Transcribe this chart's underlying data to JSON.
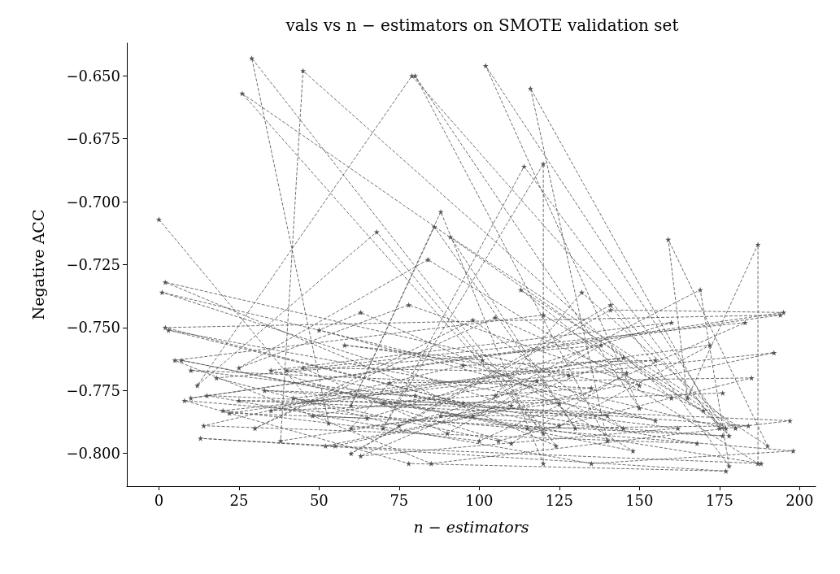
{
  "chart_data": {
    "type": "line",
    "title": "vals vs n − estimators on SMOTE validation set",
    "xlabel": "n − estimators",
    "ylabel": "Negative ACC",
    "xlim": [
      -10,
      205
    ],
    "xticks": [
      0,
      25,
      50,
      75,
      100,
      125,
      150,
      175,
      200
    ],
    "ylim": [
      -0.813,
      -0.637
    ],
    "yticks": [
      {
        "value": -0.8,
        "label": "−0.800"
      },
      {
        "value": -0.775,
        "label": "−0.775"
      },
      {
        "value": -0.75,
        "label": "−0.750"
      },
      {
        "value": -0.725,
        "label": "−0.725"
      },
      {
        "value": -0.7,
        "label": "−0.700"
      },
      {
        "value": -0.675,
        "label": "−0.675"
      },
      {
        "value": -0.65,
        "label": "−0.650"
      }
    ],
    "grid": false,
    "marker": "star",
    "line_style": "dashed",
    "series": [
      {
        "color": "#555555",
        "x": [
          0,
          53,
          29,
          124,
          2,
          160,
          45,
          38,
          110,
          1,
          177,
          26,
          120,
          68,
          12,
          79,
          178,
          102,
          150,
          80,
          140,
          116,
          175,
          114,
          70,
          120,
          120,
          88,
          60,
          86,
          130,
          91,
          190,
          159,
          165,
          187,
          187,
          84,
          25,
          78,
          150,
          113,
          180,
          132,
          105,
          169,
          178,
          141,
          60,
          141,
          195,
          10,
          194,
          2,
          95,
          3,
          155,
          50,
          63,
          145,
          98,
          30,
          105,
          170,
          120,
          5,
          85,
          197,
          15,
          135,
          198,
          8,
          78,
          177,
          13,
          55,
          192,
          20,
          100,
          183,
          40,
          125,
          172,
          22,
          65,
          160,
          35,
          110,
          146,
          45,
          90,
          138,
          18,
          75,
          128,
          58,
          101,
          148,
          7,
          115,
          184,
          33,
          80,
          168,
          14,
          95,
          155,
          42,
          106,
          185,
          72,
          60,
          125,
          25,
          140,
          88,
          176,
          48,
          118,
          63,
          162,
          10,
          135,
          70,
          188,
          52,
          98,
          145,
          35,
          176
        ],
        "values": [
          -0.707,
          -0.788,
          -0.643,
          -0.797,
          -0.732,
          -0.778,
          -0.648,
          -0.795,
          -0.781,
          -0.736,
          -0.79,
          -0.657,
          -0.792,
          -0.712,
          -0.773,
          -0.65,
          -0.793,
          -0.646,
          -0.782,
          -0.65,
          -0.795,
          -0.655,
          -0.79,
          -0.686,
          -0.79,
          -0.685,
          -0.804,
          -0.704,
          -0.781,
          -0.71,
          -0.79,
          -0.714,
          -0.797,
          -0.715,
          -0.778,
          -0.717,
          -0.804,
          -0.723,
          -0.766,
          -0.741,
          -0.773,
          -0.735,
          -0.79,
          -0.736,
          -0.777,
          -0.735,
          -0.805,
          -0.741,
          -0.8,
          -0.743,
          -0.744,
          -0.778,
          -0.745,
          -0.75,
          -0.78,
          -0.751,
          -0.787,
          -0.751,
          -0.744,
          -0.79,
          -0.747,
          -0.79,
          -0.746,
          -0.783,
          -0.745,
          -0.763,
          -0.804,
          -0.787,
          -0.777,
          -0.804,
          -0.799,
          -0.779,
          -0.804,
          -0.807,
          -0.794,
          -0.797,
          -0.76,
          -0.783,
          -0.795,
          -0.748,
          -0.767,
          -0.789,
          -0.757,
          -0.784,
          -0.786,
          -0.748,
          -0.767,
          -0.796,
          -0.768,
          -0.766,
          -0.792,
          -0.757,
          -0.77,
          -0.789,
          -0.769,
          -0.757,
          -0.763,
          -0.799,
          -0.763,
          -0.79,
          -0.789,
          -0.775,
          -0.777,
          -0.796,
          -0.789,
          -0.765,
          -0.763,
          -0.778,
          -0.795,
          -0.77,
          -0.772,
          -0.79,
          -0.78,
          -0.779,
          -0.785,
          -0.785,
          -0.793,
          -0.785,
          -0.771,
          -0.801,
          -0.79,
          -0.767,
          -0.774,
          -0.78,
          -0.804,
          -0.797,
          -0.785,
          -0.762,
          -0.783,
          -0.776
        ]
      }
    ]
  }
}
